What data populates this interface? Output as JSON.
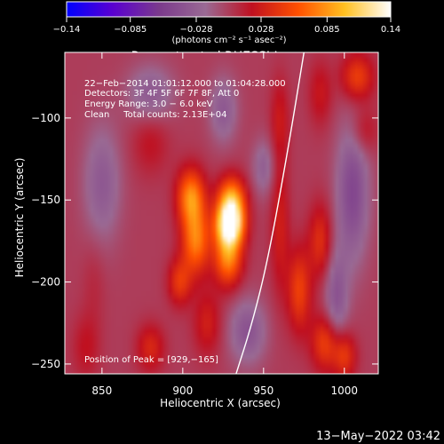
{
  "chart_data": {
    "type": "heatmap",
    "title": "Reconstructed RHESSI Image",
    "xlabel": "Heliocentric X (arcsec)",
    "ylabel": "Heliocentric Y (arcsec)",
    "xlim": [
      827,
      1021
    ],
    "ylim": [
      -256,
      -60
    ],
    "x_ticks": [
      850,
      900,
      950,
      1000
    ],
    "y_ticks": [
      -100,
      -150,
      -200,
      -250
    ],
    "colorbar": {
      "range": [
        -0.14,
        0.14
      ],
      "tick_values": [
        -0.14,
        -0.085,
        -0.028,
        0.028,
        0.085,
        0.14
      ],
      "tick_labels": [
        "−0.14",
        "−0.085",
        "−0.028",
        "0.028",
        "0.085",
        "0.14"
      ],
      "units_label": "(photons cm⁻² s⁻¹ asec⁻²)",
      "colors": [
        "#0000ff",
        "#5a00d0",
        "#7b3a8c",
        "#9a6a94",
        "#c01020",
        "#ff5000",
        "#ffc020",
        "#ffffff"
      ]
    },
    "annotations": [
      "22−Feb−2014 01:01:12.000 to 01:04:28.000",
      "Detectors: 3F 4F 5F 6F 7F 8F, Att 0",
      "Energy Range: 3.0 − 6.0 keV",
      "Clean     Total counts: 2.13E+04"
    ],
    "peak_label": "Position of Peak = [929,−165]",
    "peak": {
      "x": 929,
      "y": -165,
      "value": 0.14
    },
    "limb_curve": [
      [
        975,
        -60
      ],
      [
        965,
        -120
      ],
      [
        953,
        -185
      ],
      [
        943,
        -225
      ],
      [
        933,
        -256
      ]
    ],
    "sources": [
      {
        "x": 929,
        "y": -165,
        "value": 0.14,
        "sx": 6,
        "sy": 9
      },
      {
        "x": 930,
        "y": -150,
        "value": 0.09,
        "sx": 6,
        "sy": 10
      },
      {
        "x": 928,
        "y": -185,
        "value": 0.08,
        "sx": 6,
        "sy": 12
      },
      {
        "x": 905,
        "y": -148,
        "value": 0.08,
        "sx": 6,
        "sy": 12
      },
      {
        "x": 908,
        "y": -175,
        "value": 0.075,
        "sx": 6,
        "sy": 14
      },
      {
        "x": 898,
        "y": -200,
        "value": 0.045,
        "sx": 5,
        "sy": 10
      },
      {
        "x": 915,
        "y": -225,
        "value": 0.03,
        "sx": 6,
        "sy": 14
      },
      {
        "x": 880,
        "y": -115,
        "value": 0.02,
        "sx": 8,
        "sy": 14
      },
      {
        "x": 880,
        "y": -240,
        "value": 0.035,
        "sx": 6,
        "sy": 10
      },
      {
        "x": 960,
        "y": -165,
        "value": 0.03,
        "sx": 4,
        "sy": 30
      },
      {
        "x": 960,
        "y": -100,
        "value": 0.025,
        "sx": 4,
        "sy": 18
      },
      {
        "x": 972,
        "y": -205,
        "value": 0.05,
        "sx": 5,
        "sy": 18
      },
      {
        "x": 985,
        "y": -175,
        "value": 0.04,
        "sx": 5,
        "sy": 16
      },
      {
        "x": 988,
        "y": -237,
        "value": 0.05,
        "sx": 6,
        "sy": 12
      },
      {
        "x": 1000,
        "y": -245,
        "value": 0.045,
        "sx": 5,
        "sy": 10
      },
      {
        "x": 1008,
        "y": -75,
        "value": 0.05,
        "sx": 7,
        "sy": 10
      },
      {
        "x": 1012,
        "y": -108,
        "value": 0.025,
        "sx": 6,
        "sy": 10
      },
      {
        "x": 985,
        "y": -85,
        "value": 0.025,
        "sx": 5,
        "sy": 14
      },
      {
        "x": 840,
        "y": -240,
        "value": 0.02,
        "sx": 6,
        "sy": 14
      },
      {
        "x": 845,
        "y": -200,
        "value": 0.01,
        "sx": 5,
        "sy": 20
      },
      {
        "x": 1005,
        "y": -145,
        "value": -0.05,
        "sx": 7,
        "sy": 30
      },
      {
        "x": 995,
        "y": -210,
        "value": -0.04,
        "sx": 5,
        "sy": 20
      },
      {
        "x": 940,
        "y": -230,
        "value": -0.04,
        "sx": 8,
        "sy": 14
      },
      {
        "x": 850,
        "y": -140,
        "value": -0.035,
        "sx": 8,
        "sy": 25
      },
      {
        "x": 880,
        "y": -85,
        "value": -0.035,
        "sx": 10,
        "sy": 12
      },
      {
        "x": 925,
        "y": -95,
        "value": -0.035,
        "sx": 6,
        "sy": 14
      },
      {
        "x": 950,
        "y": -130,
        "value": -0.03,
        "sx": 5,
        "sy": 12
      }
    ]
  },
  "footer": {
    "timestamp": "13−May−2022 03:42"
  }
}
